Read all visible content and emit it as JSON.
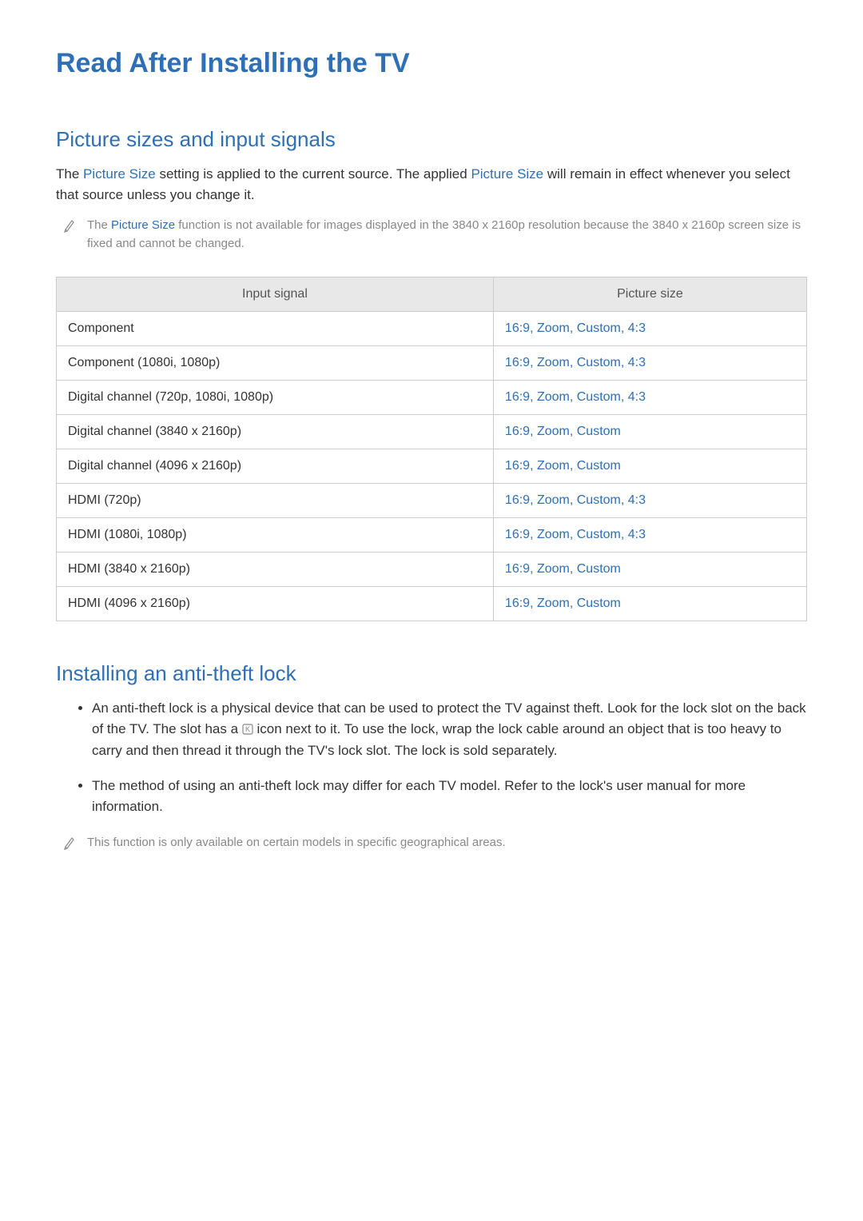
{
  "title": "Read After Installing the TV",
  "section1": {
    "heading": "Picture sizes and input signals",
    "intro_pre": "The ",
    "intro_link1": "Picture Size",
    "intro_mid": " setting is applied to the current source. The applied ",
    "intro_link2": "Picture Size",
    "intro_post": " will remain in effect whenever you select that source unless you change it.",
    "note_pre": "The ",
    "note_link": "Picture Size",
    "note_post": " function is not available for images displayed in the 3840 x 2160p resolution because the 3840 x 2160p screen size is fixed and cannot be changed."
  },
  "table": {
    "headers": [
      "Input signal",
      "Picture size"
    ],
    "rows": [
      {
        "signal": "Component",
        "size": "16:9, Zoom, Custom, 4:3"
      },
      {
        "signal": "Component (1080i, 1080p)",
        "size": "16:9, Zoom, Custom, 4:3"
      },
      {
        "signal": "Digital channel (720p, 1080i, 1080p)",
        "size": "16:9, Zoom, Custom, 4:3"
      },
      {
        "signal": "Digital channel (3840 x 2160p)",
        "size": "16:9, Zoom, Custom"
      },
      {
        "signal": "Digital channel (4096 x 2160p)",
        "size": "16:9, Zoom, Custom"
      },
      {
        "signal": "HDMI (720p)",
        "size": "16:9, Zoom, Custom, 4:3"
      },
      {
        "signal": "HDMI (1080i, 1080p)",
        "size": "16:9, Zoom, Custom, 4:3"
      },
      {
        "signal": "HDMI (3840 x 2160p)",
        "size": "16:9, Zoom, Custom"
      },
      {
        "signal": "HDMI (4096 x 2160p)",
        "size": "16:9, Zoom, Custom"
      }
    ]
  },
  "section2": {
    "heading": "Installing an anti-theft lock",
    "bullets": [
      {
        "pre": "An anti-theft lock is a physical device that can be used to protect the TV against theft. Look for the lock slot on the back of the TV. The slot has a ",
        "hasIcon": true,
        "post": " icon next to it. To use the lock, wrap the lock cable around an object that is too heavy to carry and then thread it through the TV's lock slot. The lock is sold separately."
      },
      {
        "pre": "The method of using an anti-theft lock may differ for each TV model. Refer to the lock's user manual for more information.",
        "hasIcon": false,
        "post": ""
      }
    ],
    "note": "This function is only available on certain models in specific geographical areas."
  },
  "colors": {
    "primary": "#2e6fb5",
    "text": "#333333",
    "muted": "#888888",
    "tableHeader": "#e8e8e8",
    "border": "#cccccc"
  }
}
